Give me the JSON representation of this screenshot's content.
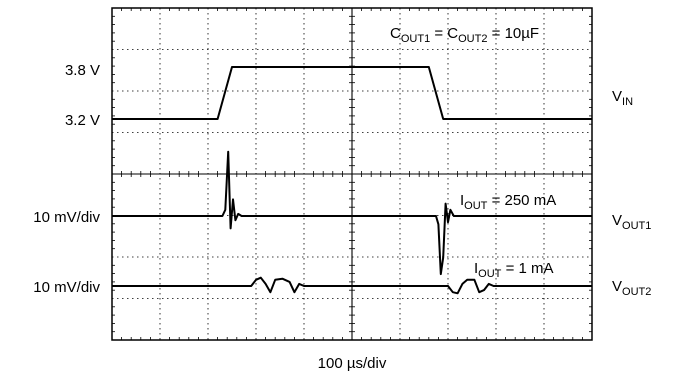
{
  "chart_data": {
    "type": "line",
    "title": "",
    "xlabel": "100 µs/div",
    "ylabel": "",
    "grid": true,
    "x_divisions": 10,
    "y_divisions": 8,
    "time_per_div_us": 100,
    "annotations": {
      "cap": {
        "a": "C",
        "a_sub": "OUT1",
        "mid": " = C",
        "b_sub": "OUT2",
        "end": " = 10µF"
      },
      "iout_high": {
        "a": "I",
        "sub": "OUT",
        "end": " = 250 mA"
      },
      "iout_low": {
        "a": "I",
        "sub": "OUT",
        "end": " = 1 mA"
      }
    },
    "left_labels": {
      "v_high": "3.8 V",
      "v_low": "3.2 V",
      "scale_out1": "10 mV/div",
      "scale_out2": "10 mV/div"
    },
    "series": [
      {
        "name": "V",
        "name_sub": "IN",
        "scale": "single",
        "levels": {
          "low": "3.2 V",
          "high": "3.8 V"
        },
        "points": [
          [
            0,
            3.2
          ],
          [
            2.2,
            3.2
          ],
          [
            2.5,
            3.8
          ],
          [
            6.6,
            3.8
          ],
          [
            6.9,
            3.2
          ],
          [
            10,
            3.2
          ]
        ]
      },
      {
        "name": "V",
        "name_sub": "OUT1",
        "scale": "10 mV/div",
        "load": "I_OUT = 250 mA",
        "points": [
          [
            0,
            0
          ],
          [
            2.3,
            0
          ],
          [
            2.36,
            0.3
          ],
          [
            2.42,
            3.1
          ],
          [
            2.47,
            -0.6
          ],
          [
            2.52,
            0.8
          ],
          [
            2.57,
            -0.2
          ],
          [
            2.63,
            0.1
          ],
          [
            2.7,
            0
          ],
          [
            6.75,
            0
          ],
          [
            6.8,
            -0.4
          ],
          [
            6.85,
            -2.8
          ],
          [
            6.9,
            -2.0
          ],
          [
            6.95,
            0.6
          ],
          [
            7.0,
            -0.3
          ],
          [
            7.05,
            0.3
          ],
          [
            7.12,
            0
          ],
          [
            10,
            0
          ]
        ]
      },
      {
        "name": "V",
        "name_sub": "OUT2",
        "scale": "10 mV/div",
        "load": "I_OUT = 1 mA",
        "points": [
          [
            0,
            0
          ],
          [
            2.9,
            0
          ],
          [
            3.0,
            0.3
          ],
          [
            3.1,
            0.4
          ],
          [
            3.2,
            0.1
          ],
          [
            3.3,
            -0.3
          ],
          [
            3.4,
            0.3
          ],
          [
            3.55,
            0.35
          ],
          [
            3.7,
            0.2
          ],
          [
            3.8,
            -0.3
          ],
          [
            3.9,
            0.1
          ],
          [
            4.0,
            0
          ],
          [
            7.0,
            0
          ],
          [
            7.1,
            -0.3
          ],
          [
            7.2,
            -0.35
          ],
          [
            7.3,
            0.1
          ],
          [
            7.4,
            0.3
          ],
          [
            7.55,
            0.3
          ],
          [
            7.65,
            -0.3
          ],
          [
            7.75,
            -0.2
          ],
          [
            7.85,
            0.1
          ],
          [
            7.95,
            0
          ],
          [
            10,
            0
          ]
        ]
      }
    ]
  }
}
